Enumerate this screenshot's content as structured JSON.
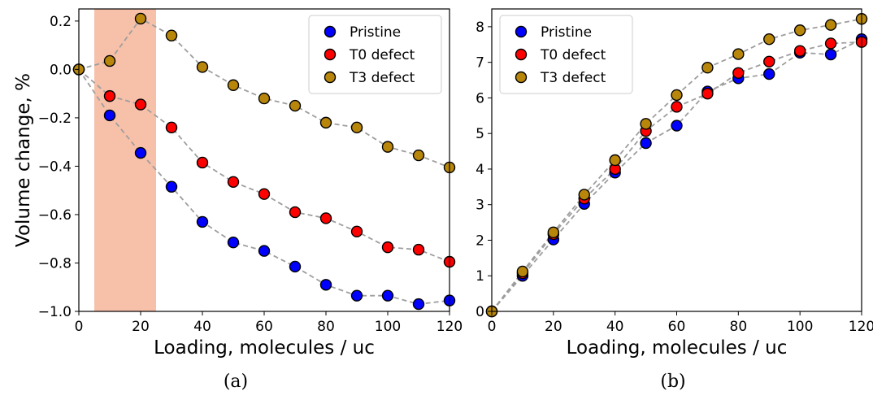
{
  "chart_data": [
    {
      "type": "scatter",
      "caption": "(a)",
      "xlabel": "Loading, molecules / uc",
      "ylabel": "Volume change, %",
      "xlim": [
        0,
        120
      ],
      "ylim": [
        -1.0,
        0.25
      ],
      "x_ticks": [
        0,
        20,
        40,
        60,
        80,
        100,
        120
      ],
      "y_ticks": [
        -1.0,
        -0.8,
        -0.6,
        -0.4,
        -0.2,
        0.0,
        0.2
      ],
      "x_tick_labels": [
        "0",
        "20",
        "40",
        "60",
        "80",
        "100",
        "120"
      ],
      "y_tick_labels": [
        "−1.0",
        "−0.8",
        "−0.6",
        "−0.4",
        "−0.2",
        "0.0",
        "0.2"
      ],
      "legend_position": "top-right",
      "grid": false,
      "highlight_region": {
        "x": [
          5,
          25
        ],
        "color": "#f7c0a9"
      },
      "x": [
        0,
        10,
        20,
        30,
        40,
        50,
        60,
        70,
        80,
        90,
        100,
        110,
        120
      ],
      "series": [
        {
          "name": "Pristine",
          "color": "#0000ff",
          "values": [
            0.0,
            -0.19,
            -0.345,
            -0.485,
            -0.63,
            -0.715,
            -0.75,
            -0.815,
            -0.89,
            -0.935,
            -0.935,
            -0.97,
            -0.955
          ]
        },
        {
          "name": "T0 defect",
          "color": "#ff0000",
          "values": [
            0.0,
            -0.11,
            -0.145,
            -0.24,
            -0.385,
            -0.465,
            -0.515,
            -0.59,
            -0.615,
            -0.67,
            -0.735,
            -0.745,
            -0.795
          ]
        },
        {
          "name": "T3 defect",
          "color": "#b8860b",
          "values": [
            0.0,
            0.035,
            0.21,
            0.14,
            0.01,
            -0.065,
            -0.12,
            -0.15,
            -0.22,
            -0.24,
            -0.32,
            -0.355,
            -0.405
          ]
        }
      ]
    },
    {
      "type": "scatter",
      "caption": "(b)",
      "xlabel": "Loading, molecules / uc",
      "ylabel": "",
      "xlim": [
        0,
        120
      ],
      "ylim": [
        0,
        8.5
      ],
      "x_ticks": [
        0,
        20,
        40,
        60,
        80,
        100,
        120
      ],
      "y_ticks": [
        0,
        1,
        2,
        3,
        4,
        5,
        6,
        7,
        8
      ],
      "x_tick_labels": [
        "0",
        "20",
        "40",
        "60",
        "80",
        "100",
        "120"
      ],
      "y_tick_labels": [
        "0",
        "1",
        "2",
        "3",
        "4",
        "5",
        "6",
        "7",
        "8"
      ],
      "legend_position": "top-left",
      "grid": false,
      "x": [
        0,
        10,
        20,
        30,
        40,
        50,
        60,
        70,
        80,
        90,
        100,
        110,
        120
      ],
      "series": [
        {
          "name": "Pristine",
          "color": "#0000ff",
          "values": [
            0.0,
            1.0,
            2.02,
            3.02,
            3.9,
            4.73,
            5.22,
            6.18,
            6.55,
            6.67,
            7.27,
            7.22,
            7.65
          ]
        },
        {
          "name": "T0 defect",
          "color": "#ff0000",
          "values": [
            0.0,
            1.07,
            2.17,
            3.17,
            4.0,
            5.07,
            5.75,
            6.12,
            6.7,
            7.02,
            7.32,
            7.53,
            7.57
          ]
        },
        {
          "name": "T3 defect",
          "color": "#b8860b",
          "values": [
            0.0,
            1.12,
            2.22,
            3.28,
            4.25,
            5.27,
            6.08,
            6.85,
            7.23,
            7.65,
            7.9,
            8.05,
            8.22
          ]
        }
      ]
    }
  ]
}
